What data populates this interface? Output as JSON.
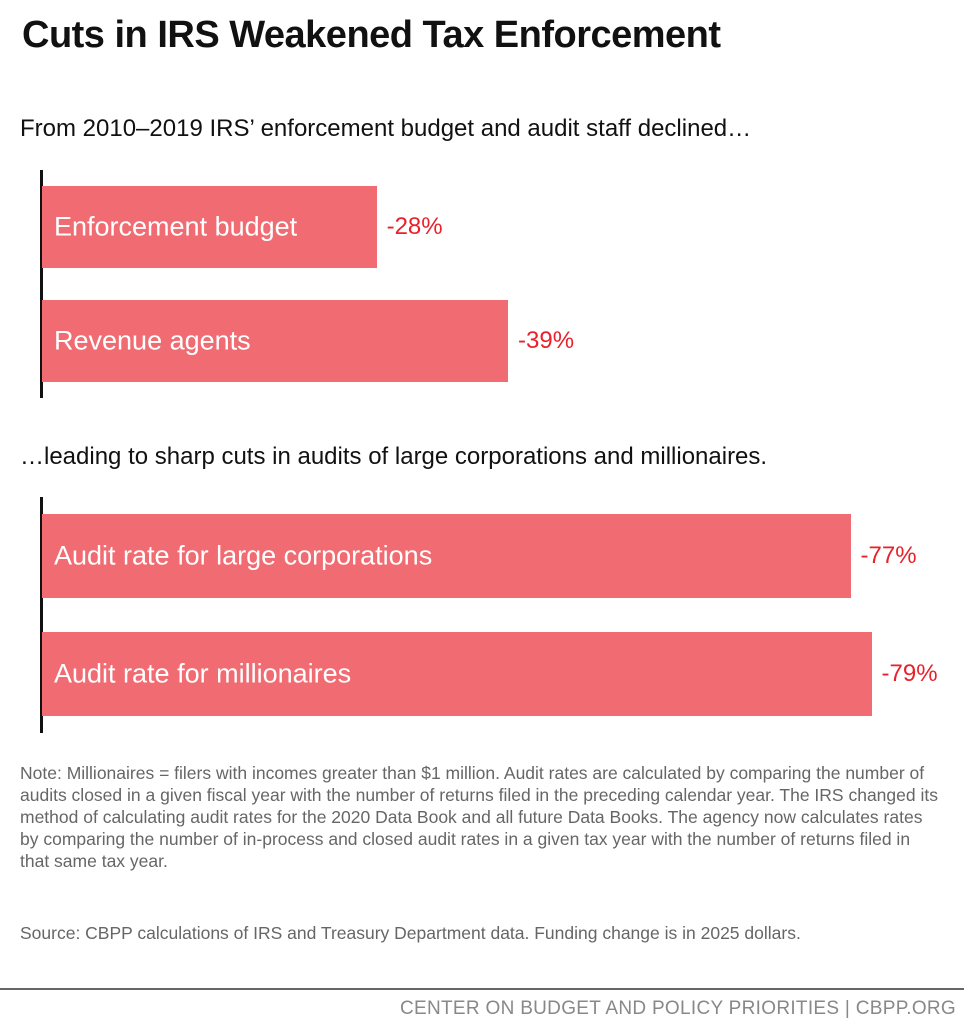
{
  "title": "Cuts in IRS Weakened Tax Enforcement",
  "chart_data": [
    {
      "type": "bar",
      "orientation": "horizontal",
      "title": "From 2010–2019 IRS’ enforcement budget and audit staff declined…",
      "categories": [
        "Enforcement budget",
        "Revenue agents"
      ],
      "values": [
        -28,
        -39
      ],
      "data_labels": [
        "-28%",
        "-39%"
      ],
      "color": "#f16b72",
      "label_color": "#e8212a"
    },
    {
      "type": "bar",
      "orientation": "horizontal",
      "title": "…leading to sharp cuts in audits of large corporations and millionaires.",
      "categories": [
        "Audit rate for large corporations",
        "Audit rate for millionaires"
      ],
      "values": [
        -77,
        -79
      ],
      "data_labels": [
        "-77%",
        "-79%"
      ],
      "color": "#f16b72",
      "label_color": "#e8212a"
    }
  ],
  "note": "Note: Millionaires = filers with incomes greater than $1 million. Audit rates are calculated by comparing the number of audits closed in a given fiscal year with the number of returns filed in the preceding calendar year. The IRS changed its method of calculating audit rates for the 2020 Data Book and all future Data Books. The agency now calculates rates by comparing the number of in-process and closed audit rates in a given tax year with the number of returns filed in that same tax year.",
  "source": "Source: CBPP calculations of IRS and Treasury Department data. Funding change is in 2025 dollars.",
  "footer": "CENTER ON BUDGET AND POLICY PRIORITIES | CBPP.ORG"
}
